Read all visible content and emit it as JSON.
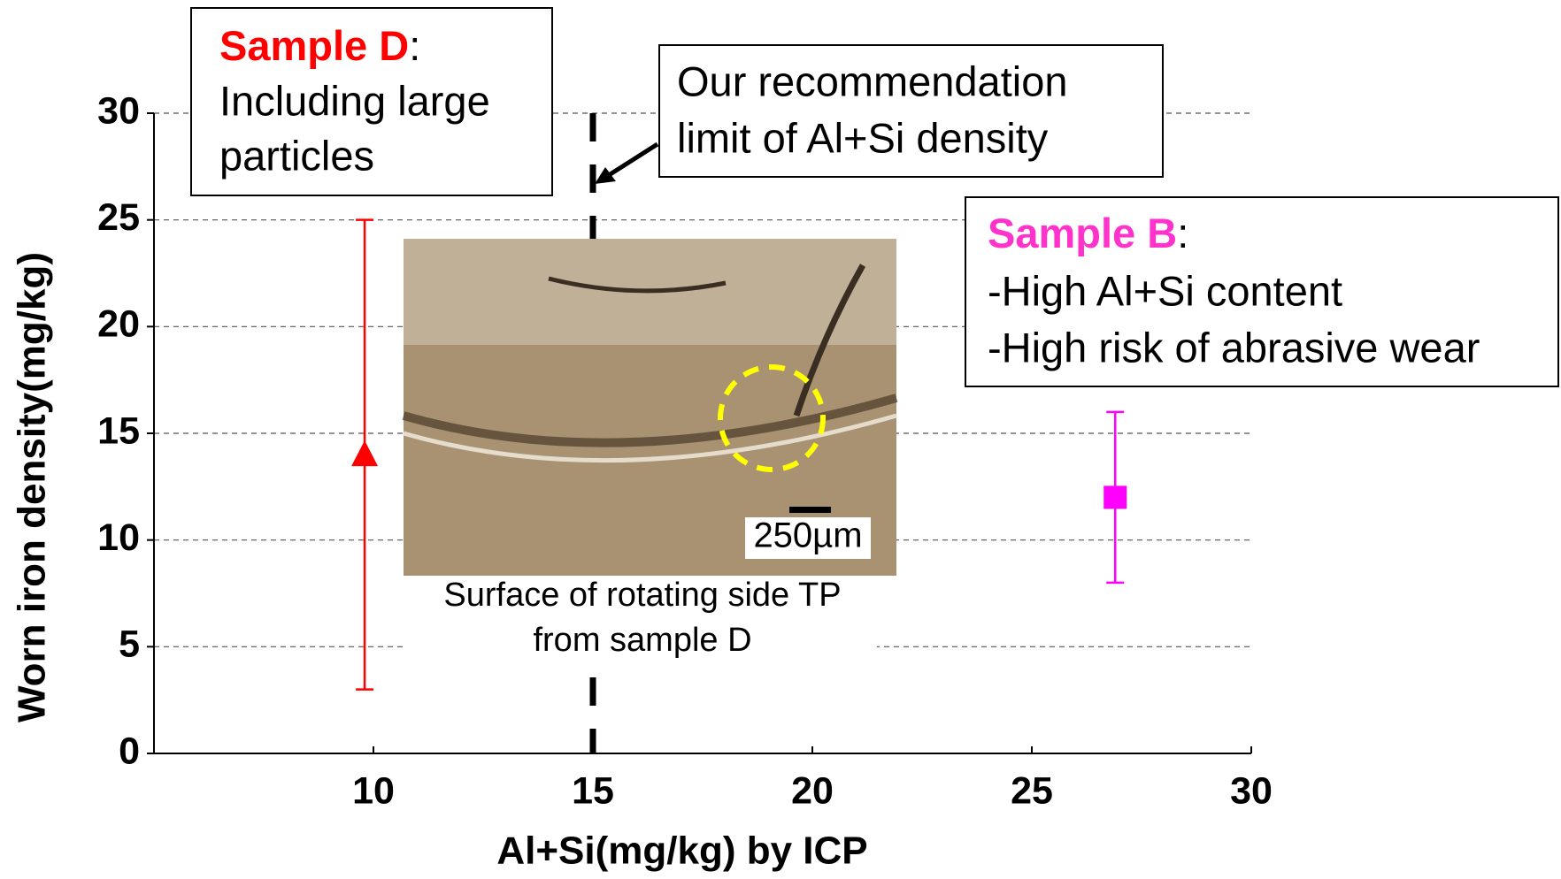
{
  "chart_data": {
    "type": "scatter",
    "x_label": "Al+Si(mg/kg)   by ICP",
    "y_label": "Worn iron density(mg/kg)",
    "xlim": [
      5,
      30
    ],
    "xticks": [
      10,
      15,
      20,
      25,
      30
    ],
    "ylim": [
      0,
      30
    ],
    "yticks": [
      0,
      5,
      10,
      15,
      20,
      25,
      30
    ],
    "grid": true,
    "reference_x": 15,
    "series": [
      {
        "name": "Sample D",
        "color": "#ff0000",
        "marker": "triangle",
        "x": [
          9.8
        ],
        "values": [
          14
        ],
        "low": [
          3
        ],
        "high": [
          25
        ]
      },
      {
        "name": "Sample B",
        "color": "#ff00ff",
        "marker": "square",
        "x": [
          26.9
        ],
        "values": [
          12
        ],
        "low": [
          8
        ],
        "high": [
          16
        ]
      }
    ],
    "annotations": {
      "sample_d": {
        "suffix": ":",
        "lines": [
          "Including large",
          "particles"
        ]
      },
      "recommendation": {
        "lines": [
          "Our recommendation",
          "limit of Al+Si  density"
        ]
      },
      "sample_b": {
        "suffix": ":",
        "lines": [
          "-High Al+Si content",
          "-High risk of abrasive wear"
        ]
      },
      "photo": {
        "scale": "250µm",
        "caption": [
          "Surface of rotating side TP",
          "from sample D"
        ]
      }
    }
  }
}
